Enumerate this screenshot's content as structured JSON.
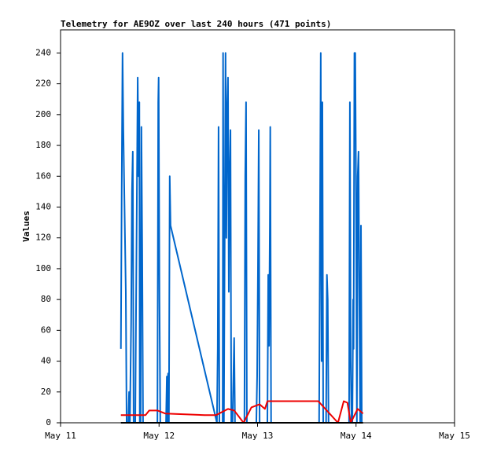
{
  "chart_data": {
    "type": "line",
    "title": "Telemetry for AE9OZ over last 240 hours (471 points)",
    "y_label": "Values",
    "xlim": [
      0,
      96
    ],
    "xticks": [
      {
        "value": 0,
        "label": "May 11"
      },
      {
        "value": 24,
        "label": "May 12"
      },
      {
        "value": 48,
        "label": "May 13"
      },
      {
        "value": 72,
        "label": "May 14"
      },
      {
        "value": 96,
        "label": "May 15"
      }
    ],
    "ylim": [
      0,
      255
    ],
    "yticks": [
      0,
      20,
      40,
      60,
      80,
      100,
      120,
      140,
      160,
      180,
      200,
      220,
      240
    ],
    "series": [
      {
        "color": "#0066cc",
        "x": [
          14.7,
          14.9,
          15.1,
          15.3,
          15.5,
          15.7,
          15.9,
          16.1,
          16.5,
          16.7,
          16.9,
          17.2,
          17.4,
          17.6,
          17.8,
          18.2,
          18.8,
          19.0,
          19.2,
          19.3,
          19.5,
          19.7,
          19.9,
          20.1,
          20.5,
          23.6,
          23.8,
          23.9,
          24.1,
          24.3,
          24.7,
          25.7,
          25.9,
          26.0,
          26.2,
          26.4,
          26.6,
          26.8,
          38.1,
          38.3,
          38.5,
          38.7,
          39.5,
          39.6,
          39.8,
          40.2,
          40.4,
          40.6,
          40.8,
          41.0,
          41.2,
          41.4,
          41.6,
          41.9,
          42.3,
          42.5,
          44.8,
          45.0,
          45.2,
          45.4,
          47.7,
          47.9,
          48.1,
          48.3,
          48.5,
          50.4,
          50.6,
          50.8,
          51.0,
          51.1,
          51.3,
          63.0,
          63.2,
          63.4,
          63.6,
          63.8,
          64.0,
          64.7,
          64.9,
          65.1,
          65.3,
          70.3,
          70.5,
          70.7,
          70.9,
          71.1,
          71.3,
          71.4,
          71.6,
          71.8,
          72.0,
          72.2,
          72.4,
          72.6,
          72.8,
          73.0,
          73.2,
          73.4
        ],
        "values": [
          48,
          150,
          240,
          190,
          155,
          120,
          85,
          0,
          0,
          20,
          0,
          65,
          150,
          176,
          0,
          0,
          224,
          160,
          208,
          0,
          0,
          192,
          112,
          0,
          0,
          0,
          208,
          224,
          80,
          0,
          0,
          0,
          30,
          0,
          32,
          0,
          160,
          128,
          0,
          48,
          192,
          0,
          0,
          240,
          0,
          240,
          120,
          204,
          224,
          85,
          160,
          190,
          0,
          0,
          55,
          0,
          0,
          160,
          208,
          0,
          0,
          30,
          100,
          190,
          0,
          0,
          96,
          50,
          128,
          192,
          0,
          0,
          120,
          240,
          40,
          208,
          0,
          0,
          96,
          80,
          0,
          0,
          208,
          40,
          0,
          0,
          80,
          48,
          240,
          240,
          150,
          0,
          160,
          176,
          80,
          0,
          128,
          0
        ]
      },
      {
        "color": "#ee0000",
        "x": [
          14.7,
          20.7,
          21.6,
          23.6,
          25.5,
          35.1,
          37.9,
          40.8,
          42.3,
          44.6,
          46.5,
          48.5,
          49.8,
          50.4,
          62.8,
          67.6,
          69.0,
          69.9,
          70.7,
          72.4,
          73.7
        ],
        "values": [
          5,
          5,
          8,
          8,
          6,
          5,
          5,
          9,
          8,
          0,
          10,
          12,
          9,
          14,
          14,
          0,
          14,
          13,
          0,
          9,
          6
        ]
      },
      {
        "color": "#000000",
        "x": [
          14.7,
          73.7
        ],
        "values": [
          0,
          0
        ]
      }
    ]
  }
}
